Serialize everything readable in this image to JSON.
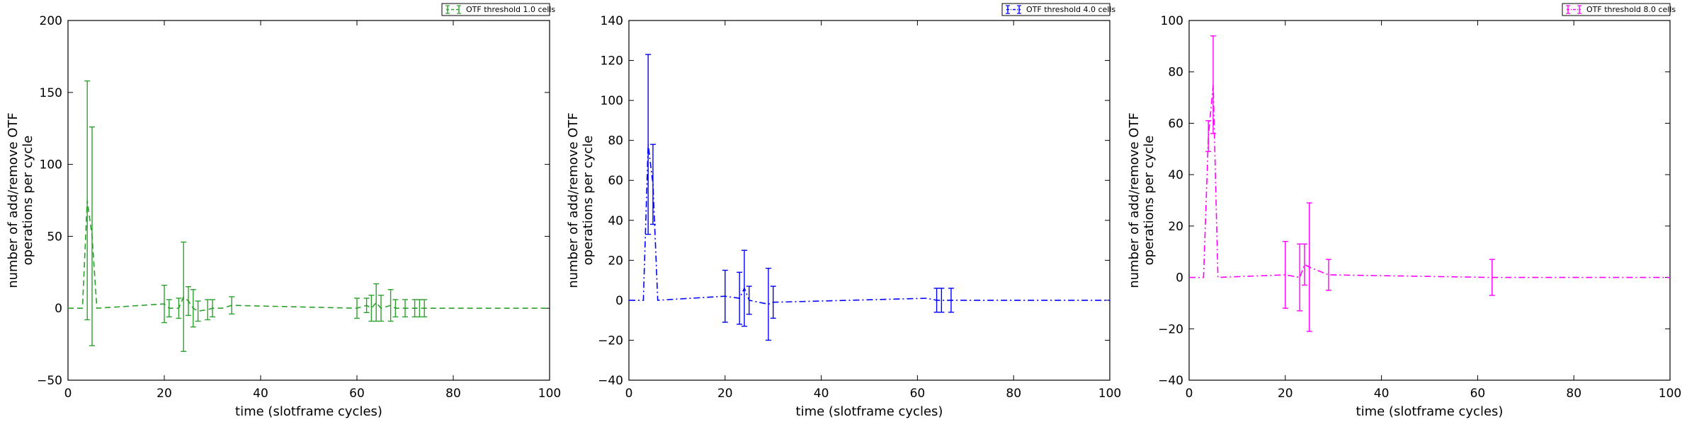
{
  "chart_data": [
    {
      "type": "line",
      "color": "#2ca02c",
      "line_style": "dashed",
      "xlabel": "time (slotframe cycles)",
      "ylabel": [
        "number of add/remove OTF",
        "operations per cycle"
      ],
      "xlim": [
        0,
        100
      ],
      "ylim": [
        -50,
        200
      ],
      "xticks": [
        0,
        20,
        40,
        60,
        80,
        100
      ],
      "yticks": [
        -50,
        0,
        50,
        100,
        150,
        200
      ],
      "legend": {
        "label": "OTF threshold 1.0 cells",
        "placement": "top-right"
      },
      "series": [
        {
          "name": "OTF threshold 1.0 cells",
          "x": [
            0,
            3,
            4,
            5,
            6,
            20,
            21,
            23,
            24,
            25,
            26,
            27,
            29,
            30,
            32,
            34,
            60,
            62,
            63,
            64,
            65,
            67,
            68,
            70,
            72,
            73,
            74,
            100
          ],
          "y": [
            0,
            0,
            75,
            50,
            0,
            3,
            0,
            0,
            8,
            5,
            0,
            -2,
            -1,
            0,
            0,
            2,
            0,
            2,
            0,
            4,
            0,
            2,
            0,
            0,
            0,
            0,
            0,
            0
          ],
          "err": [
            0,
            0,
            83,
            76,
            0,
            13,
            6,
            7,
            38,
            10,
            13,
            7,
            7,
            6,
            0,
            6,
            7,
            5,
            9,
            13,
            9,
            11,
            6,
            6,
            6,
            6,
            6,
            0
          ]
        }
      ]
    },
    {
      "type": "line",
      "color": "#0000ff",
      "line_style": "dashdot",
      "xlabel": "time (slotframe cycles)",
      "ylabel": [
        "number of add/remove OTF",
        "operations per cycle"
      ],
      "xlim": [
        0,
        100
      ],
      "ylim": [
        -40,
        140
      ],
      "xticks": [
        0,
        20,
        40,
        60,
        80,
        100
      ],
      "yticks": [
        -40,
        -20,
        0,
        20,
        40,
        60,
        80,
        100,
        120,
        140
      ],
      "legend": {
        "label": "OTF threshold 4.0 cells",
        "placement": "top-right"
      },
      "series": [
        {
          "name": "OTF threshold 4.0 cells",
          "x": [
            0,
            3,
            4,
            5,
            6,
            20,
            23,
            24,
            25,
            29,
            30,
            62,
            64,
            65,
            67,
            100
          ],
          "y": [
            0,
            0,
            78,
            58,
            0,
            2,
            1,
            6,
            0,
            -2,
            -1,
            1,
            0,
            0,
            0,
            0
          ],
          "err": [
            0,
            0,
            45,
            20,
            0,
            13,
            13,
            19,
            7,
            18,
            8,
            0,
            6,
            6,
            6,
            0
          ]
        }
      ]
    },
    {
      "type": "line",
      "color": "#ff00ff",
      "line_style": "dashdot",
      "xlabel": "time (slotframe cycles)",
      "ylabel": [
        "number of add/remove OTF",
        "operations per cycle"
      ],
      "xlim": [
        0,
        100
      ],
      "ylim": [
        -40,
        100
      ],
      "xticks": [
        0,
        20,
        40,
        60,
        80,
        100
      ],
      "yticks": [
        -40,
        -20,
        0,
        20,
        40,
        60,
        80,
        100
      ],
      "legend": {
        "label": "OTF threshold 8.0 cells",
        "placement": "top-right"
      },
      "series": [
        {
          "name": "OTF threshold 8.0 cells",
          "x": [
            0,
            3,
            4,
            5,
            6,
            20,
            23,
            24,
            25,
            29,
            63,
            100
          ],
          "y": [
            0,
            0,
            55,
            75,
            0,
            1,
            0,
            5,
            4,
            1,
            0,
            0
          ],
          "err": [
            0,
            0,
            6,
            19,
            0,
            13,
            13,
            8,
            25,
            6,
            7,
            0
          ]
        }
      ]
    }
  ]
}
